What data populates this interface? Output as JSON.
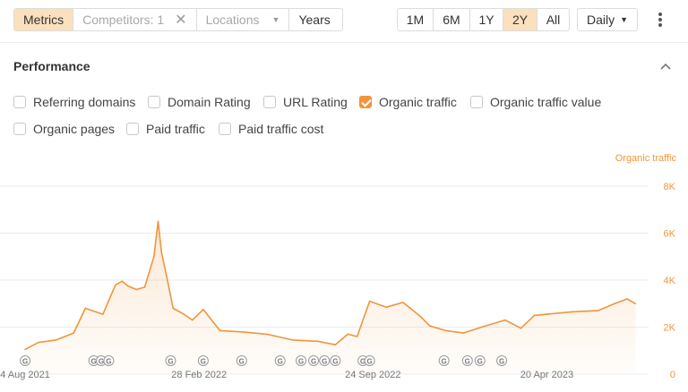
{
  "toolbar": {
    "metrics_label": "Metrics",
    "competitors_label": "Competitors: 1",
    "locations_label": "Locations",
    "years_label": "Years",
    "ranges": [
      "1M",
      "6M",
      "1Y",
      "2Y",
      "All"
    ],
    "active_range": "2Y",
    "interval_label": "Daily"
  },
  "section": {
    "title": "Performance"
  },
  "checkboxes": [
    {
      "label": "Referring domains",
      "checked": false
    },
    {
      "label": "Domain Rating",
      "checked": false
    },
    {
      "label": "URL Rating",
      "checked": false
    },
    {
      "label": "Organic traffic",
      "checked": true
    },
    {
      "label": "Organic traffic value",
      "checked": false
    },
    {
      "label": "Organic pages",
      "checked": false
    },
    {
      "label": "Paid traffic",
      "checked": false
    },
    {
      "label": "Paid traffic cost",
      "checked": false
    }
  ],
  "colors": {
    "accent": "#f0953b",
    "active_bg": "#fbe0bd"
  },
  "chart_data": {
    "type": "area",
    "series_label": "Organic traffic",
    "y_ticks": [
      "8K",
      "6K",
      "4K",
      "2K",
      "0"
    ],
    "ylim": [
      0,
      8000
    ],
    "x_tick_labels": [
      "4 Aug 2021",
      "28 Feb 2022",
      "24 Sep 2022",
      "20 Apr 2023"
    ],
    "x": [
      "2021-08-04",
      "2021-08-20",
      "2021-09-10",
      "2021-10-01",
      "2021-10-15",
      "2021-11-05",
      "2021-11-20",
      "2021-11-28",
      "2021-12-05",
      "2021-12-15",
      "2021-12-25",
      "2022-01-05",
      "2022-01-10",
      "2022-01-14",
      "2022-01-20",
      "2022-01-28",
      "2022-02-10",
      "2022-02-20",
      "2022-03-05",
      "2022-03-25",
      "2022-04-20",
      "2022-05-20",
      "2022-06-20",
      "2022-07-20",
      "2022-08-10",
      "2022-08-25",
      "2022-09-05",
      "2022-09-20",
      "2022-10-10",
      "2022-10-30",
      "2022-11-20",
      "2022-12-01",
      "2022-12-20",
      "2023-01-10",
      "2023-02-01",
      "2023-03-01",
      "2023-03-20",
      "2023-04-05",
      "2023-04-20",
      "2023-05-20",
      "2023-06-20",
      "2023-07-10",
      "2023-07-25",
      "2023-08-04"
    ],
    "values": [
      1050,
      1350,
      1450,
      1750,
      2800,
      2550,
      3800,
      3950,
      3750,
      3600,
      3700,
      5000,
      6500,
      5200,
      4200,
      2800,
      2550,
      2300,
      2750,
      1850,
      1800,
      1700,
      1450,
      1400,
      1250,
      1700,
      1600,
      3100,
      2850,
      3050,
      2450,
      2050,
      1850,
      1750,
      2000,
      2300,
      1950,
      2500,
      2550,
      2650,
      2700,
      3000,
      3200,
      3000
    ],
    "g_markers": [
      "2021-08-04",
      "2021-10-25",
      "2021-11-03",
      "2021-11-12",
      "2022-01-25",
      "2022-03-05",
      "2022-04-20",
      "2022-06-05",
      "2022-06-30",
      "2022-07-15",
      "2022-07-28",
      "2022-08-10",
      "2022-09-12",
      "2022-09-20",
      "2022-12-18",
      "2023-01-15",
      "2023-01-30",
      "2023-02-25"
    ]
  }
}
